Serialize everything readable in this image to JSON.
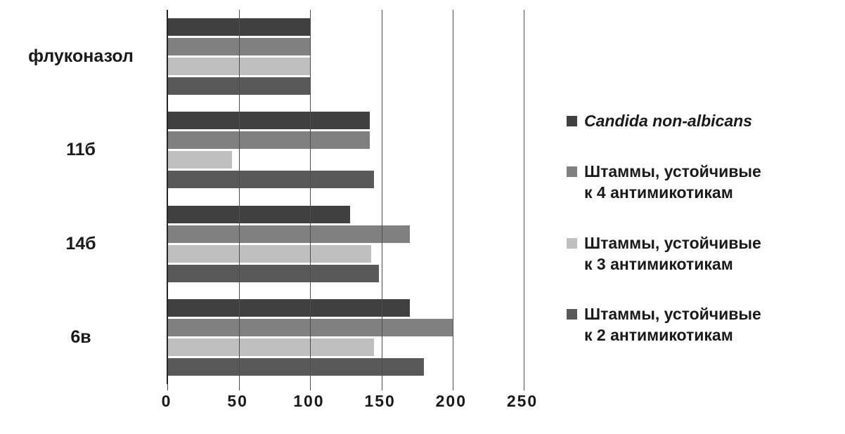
{
  "chart_data": {
    "type": "bar",
    "orientation": "horizontal",
    "title": "",
    "xlabel": "",
    "ylabel": "",
    "grid": true,
    "legend_position": "right",
    "xlim": [
      0,
      250
    ],
    "xticks": [
      "0",
      "50",
      "100",
      "150",
      "200",
      "250"
    ],
    "categories": [
      "флуконазол",
      "11б",
      "14б",
      "6в"
    ],
    "series": [
      {
        "name": "Candida non-albicans",
        "color": "#404040",
        "italic": true,
        "values": [
          100,
          142,
          128,
          170
        ]
      },
      {
        "name": "Штаммы, устойчивые к 4 антимикотикам",
        "color": "#808080",
        "italic": false,
        "values": [
          100,
          142,
          170,
          200
        ]
      },
      {
        "name": "Штаммы, устойчивые к 3 антимикотикам",
        "color": "#bfbfbf",
        "italic": false,
        "values": [
          100,
          45,
          143,
          145
        ]
      },
      {
        "name": "Штаммы, устойчивые к 2 антимикотикам",
        "color": "#595959",
        "italic": false,
        "values": [
          100,
          145,
          148,
          180
        ]
      }
    ]
  },
  "legend": {
    "items": [
      {
        "lines": [
          "Candida non-albicans"
        ],
        "color": "#404040",
        "italic": true
      },
      {
        "lines": [
          "Штаммы, устойчивые",
          "к 4 антимикотикам"
        ],
        "color": "#808080",
        "italic": false
      },
      {
        "lines": [
          "Штаммы, устойчивые",
          "к 3 антимикотикам"
        ],
        "color": "#bfbfbf",
        "italic": false
      },
      {
        "lines": [
          "Штаммы, устойчивые",
          "к 2 антимикотикам"
        ],
        "color": "#595959",
        "italic": false
      }
    ]
  },
  "colors": {
    "background": "#ffffff",
    "axis": "#262626",
    "gridline": "#4d4d4d",
    "text": "#1a1a1a"
  }
}
